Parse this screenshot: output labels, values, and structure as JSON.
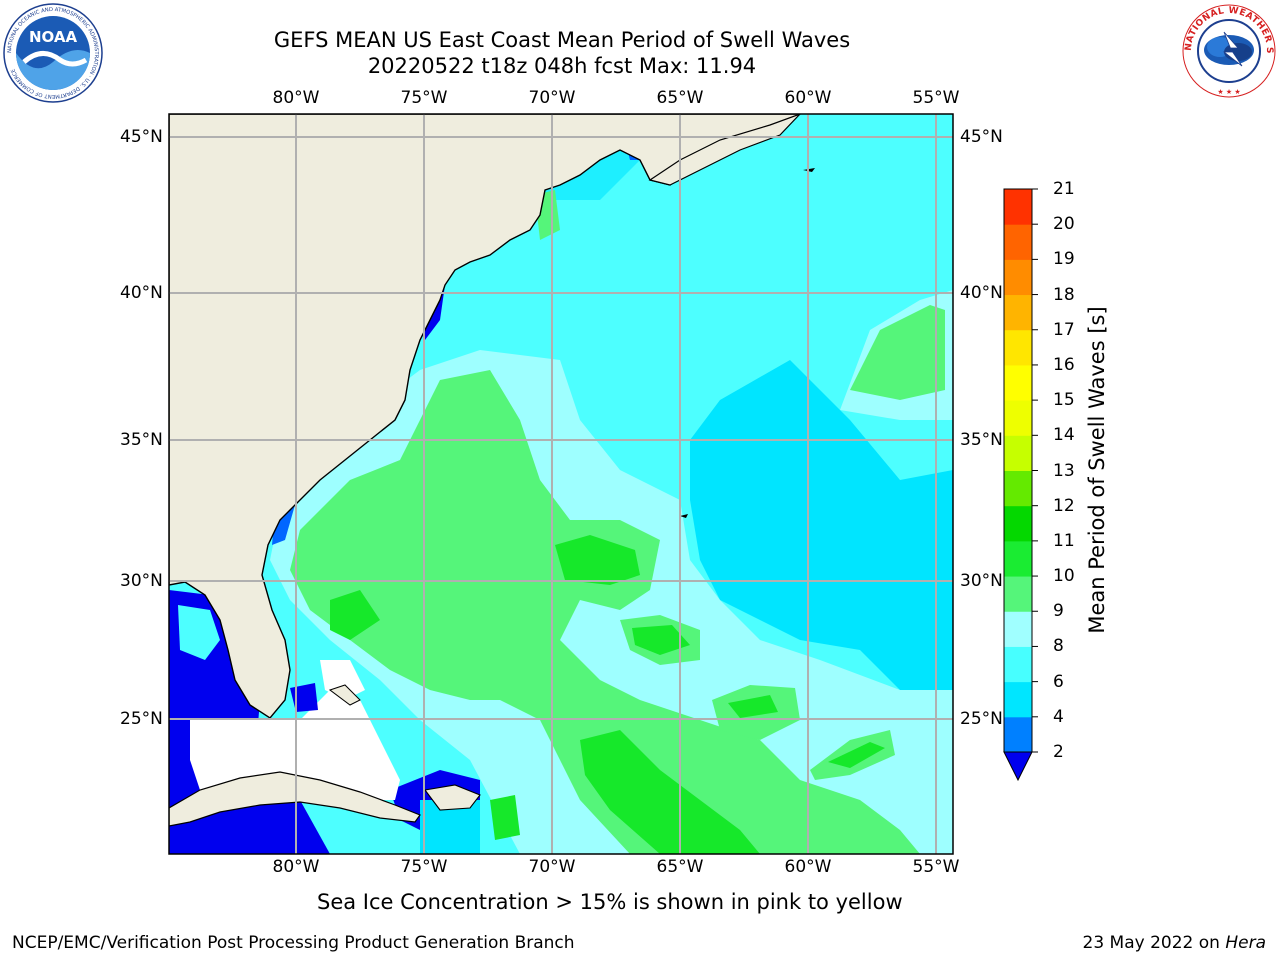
{
  "header": {
    "title_line1": "GEFS MEAN US East Coast Mean Period of Swell Waves",
    "title_line2": "20220522 t18z 048h fcst   Max: 11.94"
  },
  "logos": {
    "left": "NOAA",
    "left_ring_text": "NATIONAL OCEANIC AND ATMOSPHERIC ADMINISTRATION · U.S. DEPARTMENT OF COMMERCE",
    "right_ring_text": "NATIONAL WEATHER SERVICE"
  },
  "map": {
    "longitude_labels": [
      "80°W",
      "75°W",
      "70°W",
      "65°W",
      "60°W",
      "55°W"
    ],
    "latitude_labels": [
      "45°N",
      "40°N",
      "35°N",
      "30°N",
      "25°N"
    ],
    "colors": {
      "land": "#efedde",
      "blue": "#0066ff",
      "deep_blue": "#0000ee",
      "cyan": "#00e5ff",
      "light_cyan": "#4dffff",
      "pale_cyan": "#9effff",
      "light_green": "#55f57a",
      "green": "#16e82a",
      "grid": "#b0b0b0"
    }
  },
  "colorbar": {
    "title": "Mean Period of Swell Waves [s]",
    "levels": [
      "2",
      "4",
      "6",
      "8",
      "9",
      "10",
      "11",
      "12",
      "13",
      "14",
      "15",
      "16",
      "17",
      "18",
      "19",
      "20",
      "21"
    ],
    "colors": [
      "#0080ff",
      "#00e6ff",
      "#47ffff",
      "#a0ffff",
      "#55f57a",
      "#1aec32",
      "#04d800",
      "#64ea00",
      "#c6ff00",
      "#eeff00",
      "#ffff00",
      "#ffe600",
      "#ffb400",
      "#ff8c00",
      "#ff6400",
      "#ff3200",
      "#ff0000"
    ],
    "under_color": "#0000ee"
  },
  "footer": {
    "note": "Sea Ice Concentration > 15% is shown in pink to yellow",
    "credit_left": "NCEP/EMC/Verification Post Processing Product Generation Branch",
    "credit_right_prefix": "23 May 2022 on ",
    "credit_right_host": "Hera"
  }
}
